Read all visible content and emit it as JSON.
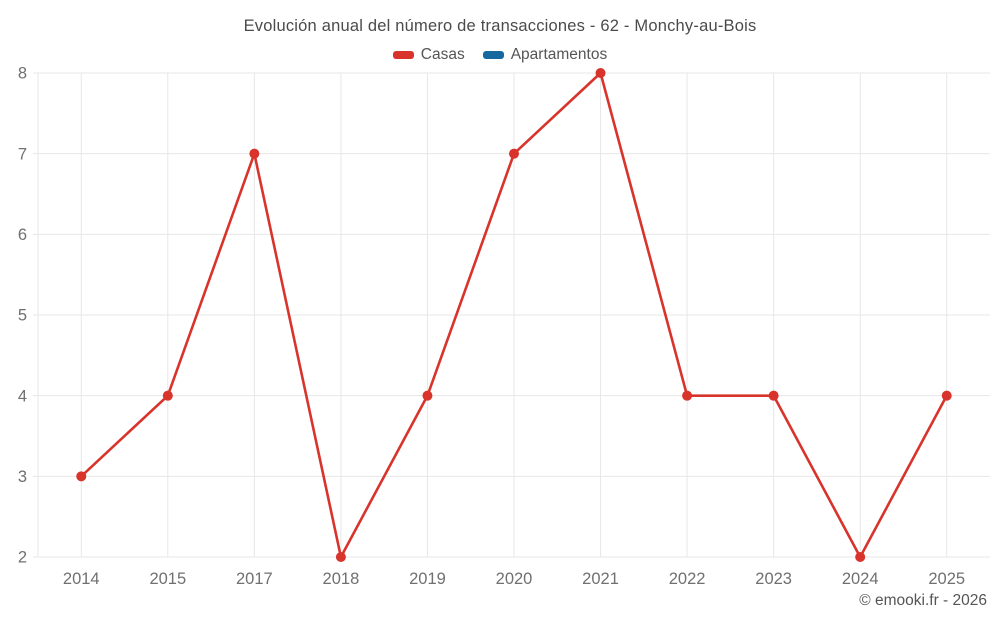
{
  "title": "Evolución anual del número de transacciones - 62 - Monchy-au-Bois",
  "legend": [
    {
      "label": "Casas",
      "color": "#d8342c"
    },
    {
      "label": "Apartamentos",
      "color": "#15699e"
    }
  ],
  "copyright": "© emooki.fr - 2026",
  "colors": {
    "grid": "#e7e7e7",
    "axis_text": "#707070",
    "title_text": "#4b4b4b"
  },
  "chart_data": {
    "type": "line",
    "title": "Evolución anual del número de transacciones - 62 - Monchy-au-Bois",
    "categories": [
      "2014",
      "2015",
      "2017",
      "2018",
      "2019",
      "2020",
      "2021",
      "2022",
      "2023",
      "2024",
      "2025"
    ],
    "series": [
      {
        "name": "Casas",
        "color": "#d8342c",
        "values": [
          3,
          4,
          7,
          2,
          4,
          7,
          8,
          4,
          4,
          2,
          4
        ]
      },
      {
        "name": "Apartamentos",
        "color": "#15699e",
        "values": []
      }
    ],
    "xlabel": "",
    "ylabel": "",
    "ylim": [
      2,
      8
    ],
    "y_ticks": [
      2,
      3,
      4,
      5,
      6,
      7,
      8
    ],
    "grid": true,
    "legend_position": "top",
    "marker_radius": 5,
    "line_width": 2.6
  }
}
